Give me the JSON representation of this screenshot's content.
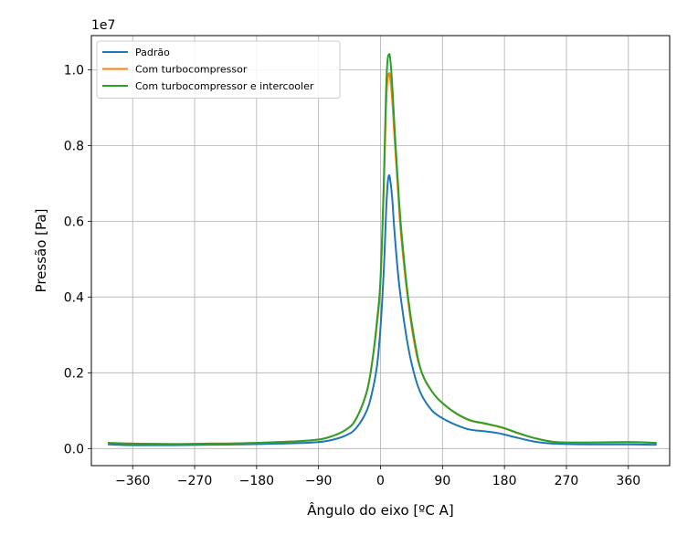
{
  "chart_data": {
    "type": "line",
    "title": "",
    "xlabel": "Ângulo do eixo [ºC A]",
    "ylabel": "Pressão [Pa]",
    "y_scale_label": "1e7",
    "y_scale": 10000000,
    "xlim": [
      -420,
      420
    ],
    "ylim": [
      -0.045,
      1.09
    ],
    "xticks": [
      -360,
      -270,
      -180,
      -90,
      0,
      90,
      180,
      270,
      360
    ],
    "xtick_labels": [
      "−360",
      "−270",
      "−180",
      "−90",
      "0",
      "90",
      "180",
      "270",
      "360"
    ],
    "yticks": [
      0.0,
      0.2,
      0.4,
      0.6,
      0.8,
      1.0
    ],
    "ytick_labels": [
      "0.0",
      "0.2",
      "0.4",
      "0.6",
      "0.8",
      "1.0"
    ],
    "grid": true,
    "legend_position": "top-left",
    "series": [
      {
        "name": "Padrão",
        "color": "#1f77b4",
        "x": [
          -395,
          -360,
          -300,
          -250,
          -200,
          -150,
          -100,
          -75,
          -50,
          -35,
          -20,
          -12,
          -5,
          0,
          5,
          8,
          10,
          12,
          14,
          17,
          20,
          25,
          30,
          40,
          50,
          60,
          75,
          90,
          110,
          130,
          150,
          170,
          180,
          200,
          225,
          250,
          270,
          300,
          360,
          400
        ],
        "y": [
          0.011,
          0.009,
          0.009,
          0.01,
          0.011,
          0.013,
          0.016,
          0.021,
          0.035,
          0.055,
          0.1,
          0.15,
          0.22,
          0.32,
          0.48,
          0.62,
          0.69,
          0.72,
          0.71,
          0.66,
          0.58,
          0.47,
          0.39,
          0.27,
          0.19,
          0.14,
          0.1,
          0.08,
          0.062,
          0.05,
          0.046,
          0.041,
          0.037,
          0.028,
          0.018,
          0.013,
          0.012,
          0.011,
          0.011,
          0.01
        ]
      },
      {
        "name": "Com turbocompressor",
        "color": "#ff7f0e",
        "x": [
          -395,
          -360,
          -300,
          -250,
          -200,
          -150,
          -100,
          -75,
          -50,
          -35,
          -20,
          -12,
          -5,
          0,
          5,
          8,
          10,
          12,
          14,
          17,
          20,
          25,
          30,
          40,
          50,
          60,
          75,
          90,
          110,
          130,
          150,
          170,
          180,
          200,
          225,
          250,
          270,
          300,
          360,
          400
        ],
        "y": [
          0.015,
          0.013,
          0.012,
          0.013,
          0.014,
          0.017,
          0.022,
          0.03,
          0.05,
          0.08,
          0.15,
          0.23,
          0.33,
          0.44,
          0.7,
          0.9,
          0.97,
          0.99,
          0.98,
          0.92,
          0.83,
          0.69,
          0.56,
          0.39,
          0.27,
          0.2,
          0.15,
          0.12,
          0.092,
          0.074,
          0.066,
          0.058,
          0.053,
          0.04,
          0.027,
          0.018,
          0.016,
          0.016,
          0.017,
          0.015
        ]
      },
      {
        "name": "Com turbocompressor e intercooler",
        "color": "#2ca02c",
        "x": [
          -395,
          -360,
          -300,
          -250,
          -200,
          -150,
          -100,
          -75,
          -50,
          -35,
          -20,
          -12,
          -5,
          0,
          5,
          8,
          10,
          12,
          14,
          17,
          20,
          25,
          30,
          40,
          50,
          60,
          75,
          90,
          110,
          130,
          150,
          170,
          180,
          200,
          225,
          250,
          270,
          300,
          360,
          400
        ],
        "y": [
          0.015,
          0.013,
          0.012,
          0.013,
          0.014,
          0.017,
          0.022,
          0.03,
          0.05,
          0.08,
          0.15,
          0.23,
          0.34,
          0.45,
          0.72,
          0.94,
          1.02,
          1.04,
          1.03,
          0.96,
          0.86,
          0.71,
          0.58,
          0.4,
          0.28,
          0.2,
          0.15,
          0.12,
          0.093,
          0.075,
          0.067,
          0.059,
          0.054,
          0.041,
          0.027,
          0.018,
          0.016,
          0.016,
          0.017,
          0.015
        ]
      }
    ]
  }
}
